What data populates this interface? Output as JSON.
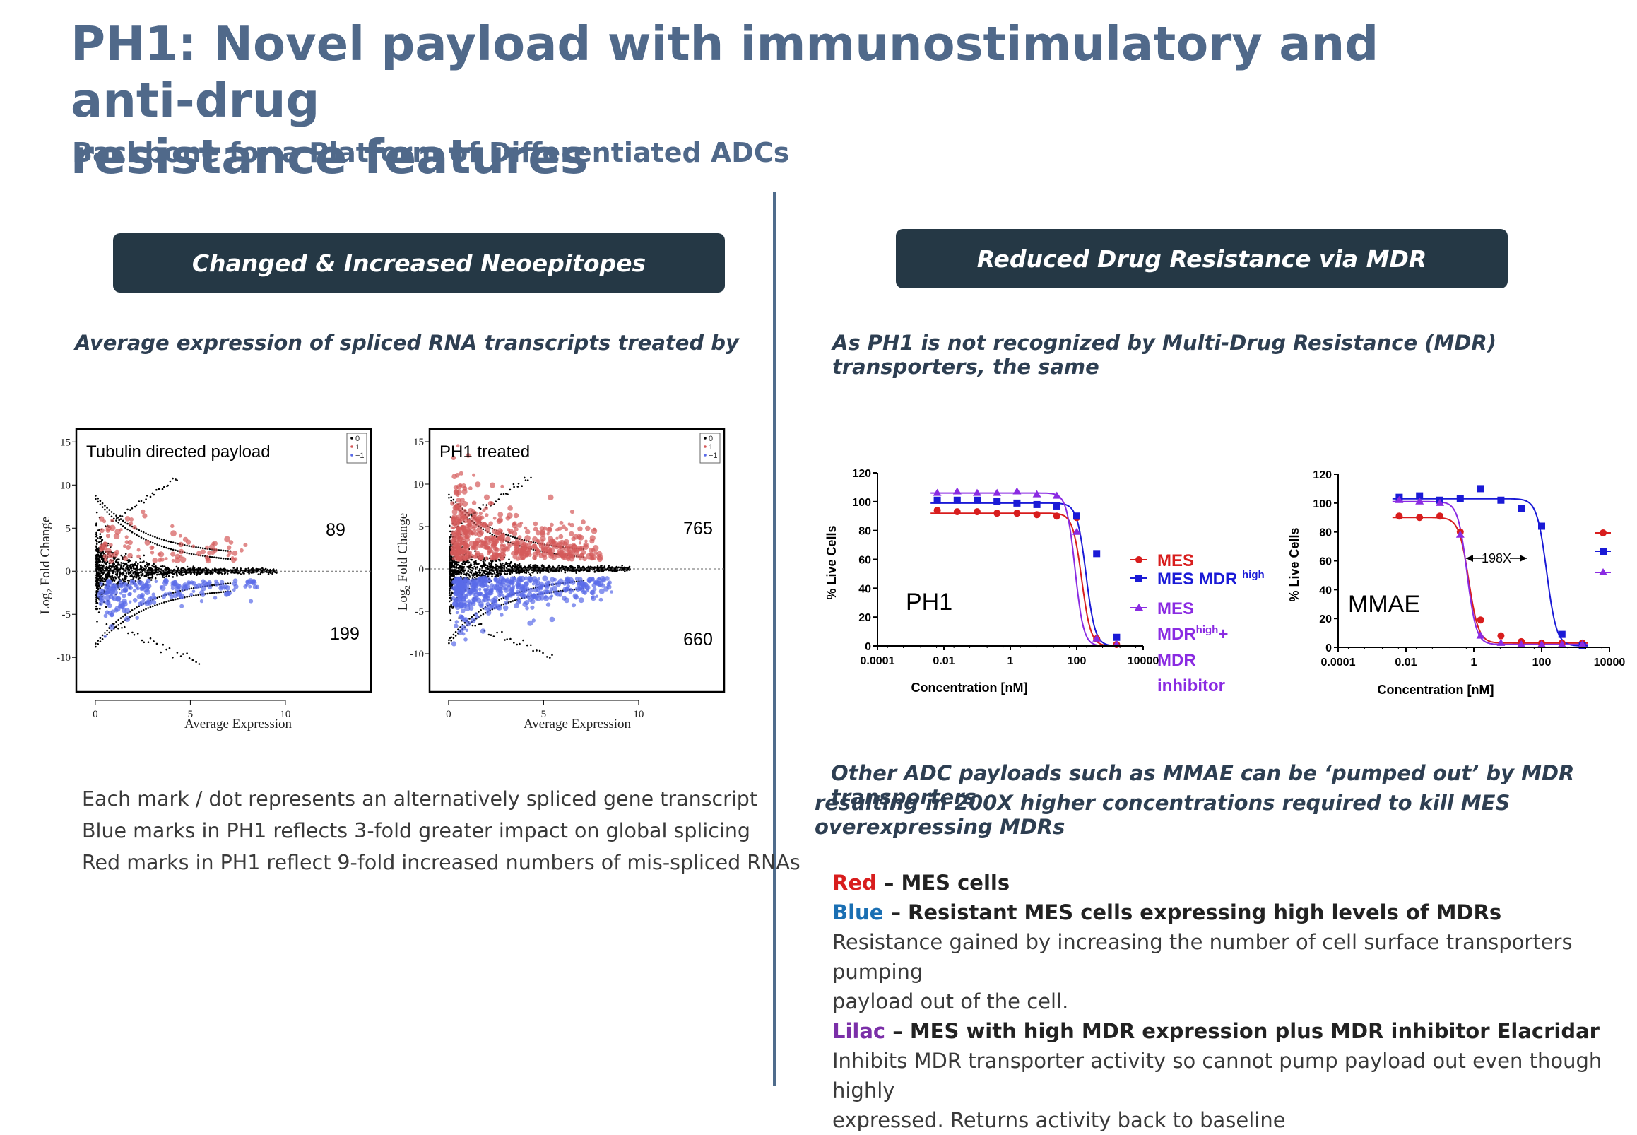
{
  "header": {
    "title_line1": "PH1: Novel payload with immunostimulatory and anti-drug",
    "title_line2": "resistance features",
    "subtitle": "Backbone for a Platform of Differentiated ADCs"
  },
  "left": {
    "banner": "Changed & Increased Neoepitopes",
    "lead": "Average expression of spliced RNA transcripts treated by",
    "notes": [
      "Each mark / dot represents an alternatively spliced gene transcript",
      "Blue marks in PH1 reflects 3-fold greater impact on global splicing",
      "Red marks in PH1 reflect 9-fold increased numbers of mis-spliced RNAs"
    ]
  },
  "right": {
    "banner": "Reduced Drug Resistance via MDR",
    "lead": "As PH1 is not recognized by Multi-Drug Resistance (MDR) transporters, the same",
    "mid_line1": "Other ADC payloads such as MMAE can be ‘pumped out’ by MDR transporters",
    "mid_line2": "resulting in 200X higher concentrations required to kill MES overexpressing MDRs",
    "legend": {
      "red_word": "Red",
      "red_text": " – MES cells",
      "blue_word": "Blue",
      "blue_text": " – Resistant MES cells expressing high levels of MDRs",
      "blue_desc1": "Resistance gained by increasing the number of cell surface transporters pumping",
      "blue_desc2": "payload out of the cell.",
      "lilac_word": "Lilac",
      "lilac_text": " – MES with high MDR expression plus MDR inhibitor Elacridar",
      "lilac_desc1": "Inhibits MDR transporter activity so cannot pump payload out even though highly",
      "lilac_desc2": "expressed. Returns activity back to baseline"
    }
  },
  "colors": {
    "title": "#50698a",
    "banner_bg": "#253845",
    "red": "#d81d1d",
    "blue": "#1a1ad6",
    "lilac": "#8a2be2",
    "ma_red": "#d45a5a",
    "ma_blue": "#5a6be8"
  },
  "chart_data": [
    {
      "type": "scatter",
      "title": "Tubulin directed payload",
      "xlabel": "Average Expression",
      "ylabel": "Log2 Fold Change",
      "x_ticks": [
        "0",
        "5",
        "10"
      ],
      "y_ticks": [
        "15",
        "10",
        "5",
        "0",
        "-5",
        "-10"
      ],
      "xlim": [
        -1,
        14.5
      ],
      "ylim": [
        -14,
        16.5
      ],
      "legend": [
        "0",
        "1",
        "−1"
      ],
      "count_up": "89",
      "count_down": "199",
      "n_red": 89,
      "n_blue": 199,
      "red_spread": 1.0,
      "blue_spread": 1.0
    },
    {
      "type": "scatter",
      "title": "PH1 treated",
      "xlabel": "Average Expression",
      "ylabel": "Log2 Fold Change",
      "x_ticks": [
        "0",
        "5",
        "10"
      ],
      "y_ticks": [
        "15",
        "10",
        "5",
        "0",
        "-5",
        "-10"
      ],
      "xlim": [
        -1,
        14.5
      ],
      "ylim": [
        -14.5,
        16.5
      ],
      "legend": [
        "0",
        "1",
        "−1"
      ],
      "count_up": "765",
      "count_down": "660",
      "n_red": 765,
      "n_blue": 660,
      "red_spread": 1.6,
      "blue_spread": 1.25
    },
    {
      "type": "line",
      "title": "PH1",
      "xlabel": "Concentration [nM]",
      "ylabel": "% Live Cells",
      "x_ticks": [
        "0.0001",
        "0.01",
        "1",
        "100",
        "10000"
      ],
      "y_ticks": [
        "0",
        "20",
        "40",
        "60",
        "80",
        "100",
        "120"
      ],
      "ylim": [
        0,
        120
      ],
      "x_log10_range": [
        -4,
        4
      ],
      "series": [
        {
          "name": "MES",
          "color": "red",
          "marker": "circle",
          "x_log10": [
            -2.2,
            -1.6,
            -1.0,
            -0.4,
            0.2,
            0.8,
            1.4,
            2.0,
            2.6,
            3.2
          ],
          "y": [
            94,
            93,
            93,
            92,
            92,
            91,
            90,
            89,
            5,
            1
          ],
          "fit": {
            "top": 92,
            "bottom": 0,
            "log_ic50": 2.15,
            "hill": 3.2
          }
        },
        {
          "name": "MES MDR high",
          "color": "blue",
          "marker": "square",
          "x_log10": [
            -2.2,
            -1.6,
            -1.0,
            -0.4,
            0.2,
            0.8,
            1.4,
            2.0,
            2.6,
            3.2
          ],
          "y": [
            101,
            101,
            101,
            100,
            99,
            98,
            97,
            90,
            64,
            6
          ],
          "fit": {
            "top": 99,
            "bottom": 0,
            "log_ic50": 2.28,
            "hill": 3.2
          }
        },
        {
          "name": "MES MDRhigh+ MDR inhibitor",
          "color": "lilac",
          "marker": "triangle",
          "x_log10": [
            -2.2,
            -1.6,
            -1.0,
            -0.4,
            0.2,
            0.8,
            1.4,
            2.0,
            2.6,
            3.2
          ],
          "y": [
            106,
            107,
            106,
            106,
            107,
            105,
            104,
            79,
            5,
            1
          ],
          "fit": {
            "top": 106,
            "bottom": 0,
            "log_ic50": 1.95,
            "hill": 3.4
          }
        }
      ],
      "legend_labels": [
        "MES",
        "MES MDR ",
        "high",
        "MES",
        "MDR",
        "high",
        "+",
        "MDR",
        "inhibitor"
      ]
    },
    {
      "type": "line",
      "title": "MMAE",
      "xlabel": "Concentration [nM]",
      "ylabel": "% Live Cells",
      "x_ticks": [
        "0.0001",
        "0.01",
        "1",
        "100",
        "10000"
      ],
      "y_ticks": [
        "0",
        "20",
        "40",
        "60",
        "80",
        "100",
        "120"
      ],
      "ylim": [
        0,
        120
      ],
      "x_log10_range": [
        -4,
        4
      ],
      "annotation": "198X",
      "series": [
        {
          "name": "MES",
          "color": "red",
          "marker": "circle",
          "x_log10": [
            -2.2,
            -1.6,
            -1.0,
            -0.4,
            0.2,
            0.8,
            1.4,
            2.0,
            2.6,
            3.2
          ],
          "y": [
            91,
            90,
            91,
            80,
            19,
            8,
            4,
            3,
            3,
            3
          ],
          "fit": {
            "top": 90,
            "bottom": 3,
            "log_ic50": -0.15,
            "hill": 3.0
          }
        },
        {
          "name": "MES MDR high",
          "color": "blue",
          "marker": "square",
          "x_log10": [
            -2.2,
            -1.6,
            -1.0,
            -0.4,
            0.2,
            0.8,
            1.4,
            2.0,
            2.6,
            3.2
          ],
          "y": [
            104,
            105,
            102,
            103,
            110,
            102,
            96,
            84,
            9,
            1
          ],
          "fit": {
            "top": 103,
            "bottom": 1,
            "log_ic50": 2.15,
            "hill": 3.0
          }
        },
        {
          "name": "MES MDRhigh+ MDR inhibitor",
          "color": "lilac",
          "marker": "triangle",
          "x_log10": [
            -2.2,
            -1.6,
            -1.0,
            -0.4,
            0.2,
            0.8,
            1.4,
            2.0,
            2.6,
            3.2
          ],
          "y": [
            102,
            101,
            100,
            78,
            8,
            3,
            2,
            2,
            2,
            2
          ],
          "fit": {
            "top": 101,
            "bottom": 2,
            "log_ic50": -0.2,
            "hill": 3.2
          }
        }
      ]
    }
  ]
}
